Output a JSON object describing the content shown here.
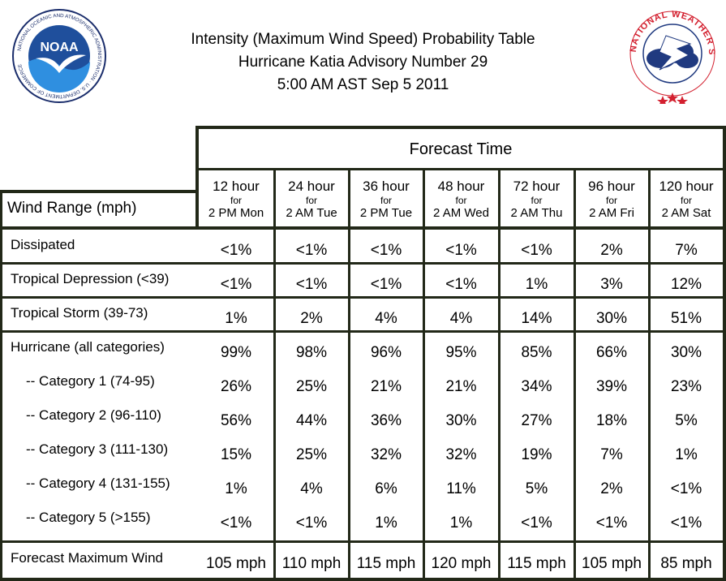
{
  "header": {
    "title_line1": "Intensity (Maximum Wind Speed) Probability Table",
    "title_line2": "Hurricane Katia Advisory Number 29",
    "title_line3": "5:00 AM AST Sep 5 2011"
  },
  "logos": {
    "noaa_text": "NOAA",
    "noaa_ring_text": "NATIONAL OCEANIC AND ATMOSPHERIC ADMINISTRATION · U.S. DEPARTMENT OF COMMERCE",
    "nws_ring_text": "NATIONAL WEATHER SERVICE"
  },
  "table": {
    "forecast_time_label": "Forecast Time",
    "wind_range_label": "Wind Range (mph)",
    "columns": [
      {
        "hour": "12 hour",
        "for": "for",
        "date": "2 PM Mon"
      },
      {
        "hour": "24 hour",
        "for": "for",
        "date": "2 AM Tue"
      },
      {
        "hour": "36 hour",
        "for": "for",
        "date": "2 PM Tue"
      },
      {
        "hour": "48 hour",
        "for": "for",
        "date": "2 AM Wed"
      },
      {
        "hour": "72 hour",
        "for": "for",
        "date": "2 AM Thu"
      },
      {
        "hour": "96 hour",
        "for": "for",
        "date": "2 AM Fri"
      },
      {
        "hour": "120 hour",
        "for": "for",
        "date": "2 AM Sat"
      }
    ],
    "rows": [
      {
        "label": "Dissipated",
        "values": [
          "<1%",
          "<1%",
          "<1%",
          "<1%",
          "<1%",
          "2%",
          "7%"
        ]
      },
      {
        "label": "Tropical Depression (<39)",
        "values": [
          "<1%",
          "<1%",
          "<1%",
          "<1%",
          "1%",
          "3%",
          "12%"
        ]
      },
      {
        "label": "Tropical Storm (39-73)",
        "values": [
          "1%",
          "2%",
          "4%",
          "4%",
          "14%",
          "30%",
          "51%"
        ]
      },
      {
        "label": "Hurricane (all categories)",
        "values": [
          "99%",
          "98%",
          "96%",
          "95%",
          "85%",
          "66%",
          "30%"
        ]
      },
      {
        "label": "-- Category 1 (74-95)",
        "values": [
          "26%",
          "25%",
          "21%",
          "21%",
          "34%",
          "39%",
          "23%"
        ]
      },
      {
        "label": "-- Category 2 (96-110)",
        "values": [
          "56%",
          "44%",
          "36%",
          "30%",
          "27%",
          "18%",
          "5%"
        ]
      },
      {
        "label": "-- Category 3 (111-130)",
        "values": [
          "15%",
          "25%",
          "32%",
          "32%",
          "19%",
          "7%",
          "1%"
        ]
      },
      {
        "label": "-- Category 4 (131-155)",
        "values": [
          "1%",
          "4%",
          "6%",
          "11%",
          "5%",
          "2%",
          "<1%"
        ]
      },
      {
        "label": "-- Category 5 (>155)",
        "values": [
          "<1%",
          "<1%",
          "1%",
          "1%",
          "<1%",
          "<1%",
          "<1%"
        ]
      },
      {
        "label": "Forecast Maximum Wind",
        "values": [
          "105 mph",
          "110 mph",
          "115 mph",
          "120 mph",
          "115 mph",
          "105 mph",
          "85 mph"
        ]
      }
    ]
  },
  "colors": {
    "border": "#222818",
    "noaa_blue": "#1f4f9c",
    "nws_red": "#d3202f",
    "nws_navy": "#203a80"
  }
}
